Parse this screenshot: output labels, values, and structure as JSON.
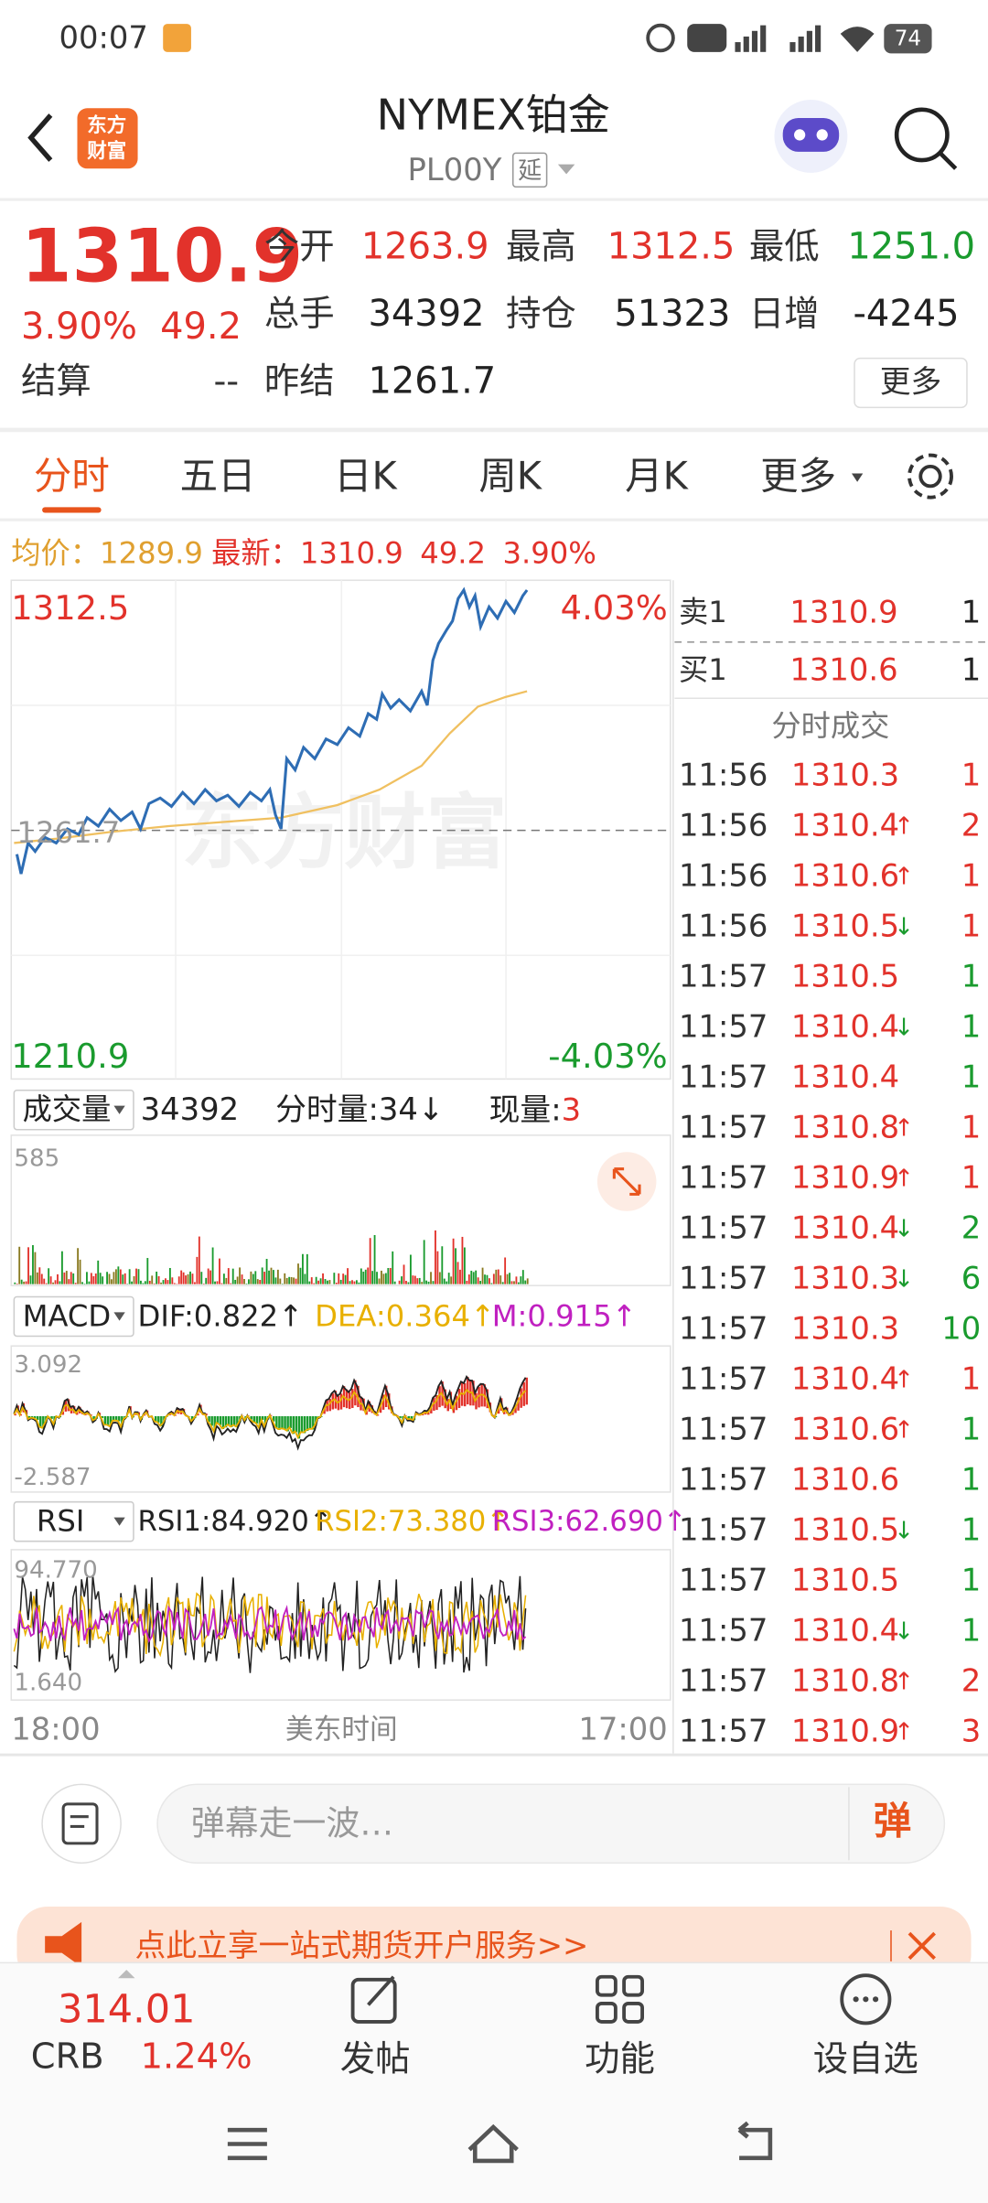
{
  "status_bar": {
    "time": "00:07",
    "battery": "74"
  },
  "header": {
    "logo_lines": [
      "东方",
      "财富"
    ],
    "title": "NYMEX铂金",
    "code": "PL00Y",
    "delay_tag": "延"
  },
  "quote": {
    "price": "1310.9",
    "change_pct": "3.90%",
    "change": "49.2",
    "settle_label": "结算",
    "settle_value": "--",
    "more": "更多",
    "fields": [
      {
        "label": "今开",
        "value": "1263.9",
        "color": "#e2322b"
      },
      {
        "label": "最高",
        "value": "1312.5",
        "color": "#e2322b"
      },
      {
        "label": "最低",
        "value": "1251.0",
        "color": "#1a9b2e"
      },
      {
        "label": "总手",
        "value": "34392",
        "color": "#222222"
      },
      {
        "label": "持仓",
        "value": "51323",
        "color": "#222222"
      },
      {
        "label": "日增",
        "value": "-4245",
        "color": "#222222"
      },
      {
        "label": "昨结",
        "value": "1261.7",
        "color": "#222222"
      }
    ]
  },
  "tabs": [
    "分时",
    "五日",
    "日K",
    "周K",
    "月K",
    "更多"
  ],
  "info_line": {
    "avg_label": "均价：",
    "avg": "1289.9",
    "latest_label": "最新：",
    "latest": "1310.9",
    "change": "49.2",
    "change_pct": "3.90%"
  },
  "chart": {
    "high": "1312.5",
    "high_pct": "4.03%",
    "low": "1210.9",
    "low_pct": "-4.03%",
    "prev_close": "1261.7",
    "watermark": "东方财富",
    "start_time": "18:00",
    "timezone": "美东时间",
    "end_time": "17:00"
  },
  "volume": {
    "label": "成交量",
    "total": "34392",
    "tick": "分时量:34↓",
    "now_label": "现量:",
    "now": "3",
    "max": "585"
  },
  "macd": {
    "label": "MACD",
    "dif": "DIF:0.822↑",
    "dea": "DEA:0.364↑",
    "m": "M:0.915↑",
    "max": "3.092",
    "min": "-2.587"
  },
  "rsi": {
    "label": "RSI",
    "rsi1": "RSI1:84.920↑",
    "rsi2": "RSI2:73.380↑",
    "rsi3": "RSI3:62.690↑",
    "max": "94.770",
    "min": "1.640"
  },
  "order_book": {
    "ask_label": "卖1",
    "ask": "1310.9",
    "ask_vol": "1",
    "bid_label": "买1",
    "bid": "1310.6",
    "bid_vol": "1",
    "trades_title": "分时成交"
  },
  "trades": [
    {
      "time": "11:56",
      "price": "1310.3",
      "volume": "1",
      "color": "#e2322b"
    },
    {
      "time": "11:56",
      "price": "1310.4",
      "arrow": "↑",
      "volume": "2",
      "color": "#e2322b"
    },
    {
      "time": "11:56",
      "price": "1310.6",
      "arrow": "↑",
      "volume": "1",
      "color": "#e2322b"
    },
    {
      "time": "11:56",
      "price": "1310.5",
      "arrow": "↓",
      "volume": "1",
      "color": "#e2322b"
    },
    {
      "time": "11:57",
      "price": "1310.5",
      "volume": "1",
      "color": "#1a9b2e"
    },
    {
      "time": "11:57",
      "price": "1310.4",
      "arrow": "↓",
      "volume": "1",
      "color": "#1a9b2e"
    },
    {
      "time": "11:57",
      "price": "1310.4",
      "volume": "1",
      "color": "#1a9b2e"
    },
    {
      "time": "11:57",
      "price": "1310.8",
      "arrow": "↑",
      "volume": "1",
      "color": "#e2322b"
    },
    {
      "time": "11:57",
      "price": "1310.9",
      "arrow": "↑",
      "volume": "1",
      "color": "#e2322b"
    },
    {
      "time": "11:57",
      "price": "1310.4",
      "arrow": "↓",
      "volume": "2",
      "color": "#1a9b2e"
    },
    {
      "time": "11:57",
      "price": "1310.3",
      "arrow": "↓",
      "volume": "6",
      "color": "#1a9b2e"
    },
    {
      "time": "11:57",
      "price": "1310.3",
      "volume": "10",
      "color": "#1a9b2e"
    },
    {
      "time": "11:57",
      "price": "1310.4",
      "arrow": "↑",
      "volume": "1",
      "color": "#e2322b"
    },
    {
      "time": "11:57",
      "price": "1310.6",
      "arrow": "↑",
      "volume": "1",
      "color": "#1a9b2e"
    },
    {
      "time": "11:57",
      "price": "1310.6",
      "volume": "1",
      "color": "#1a9b2e"
    },
    {
      "time": "11:57",
      "price": "1310.5",
      "arrow": "↓",
      "volume": "1",
      "color": "#1a9b2e"
    },
    {
      "time": "11:57",
      "price": "1310.5",
      "volume": "1",
      "color": "#1a9b2e"
    },
    {
      "time": "11:57",
      "price": "1310.4",
      "arrow": "↓",
      "volume": "1",
      "color": "#1a9b2e"
    },
    {
      "time": "11:57",
      "price": "1310.8",
      "arrow": "↑",
      "volume": "2",
      "color": "#e2322b"
    },
    {
      "time": "11:57",
      "price": "1310.9",
      "arrow": "↑",
      "volume": "3",
      "color": "#e2322b"
    }
  ],
  "comment_bar": {
    "placeholder": "弹幕走一波…",
    "button": "弹"
  },
  "banner": {
    "text": "点此立享一站式期货开户服务>>"
  },
  "bottom_nav": {
    "index_value": "314.01",
    "index_name": "CRB",
    "index_change": "1.24%",
    "items": [
      "发帖",
      "功能",
      "设自选"
    ]
  }
}
